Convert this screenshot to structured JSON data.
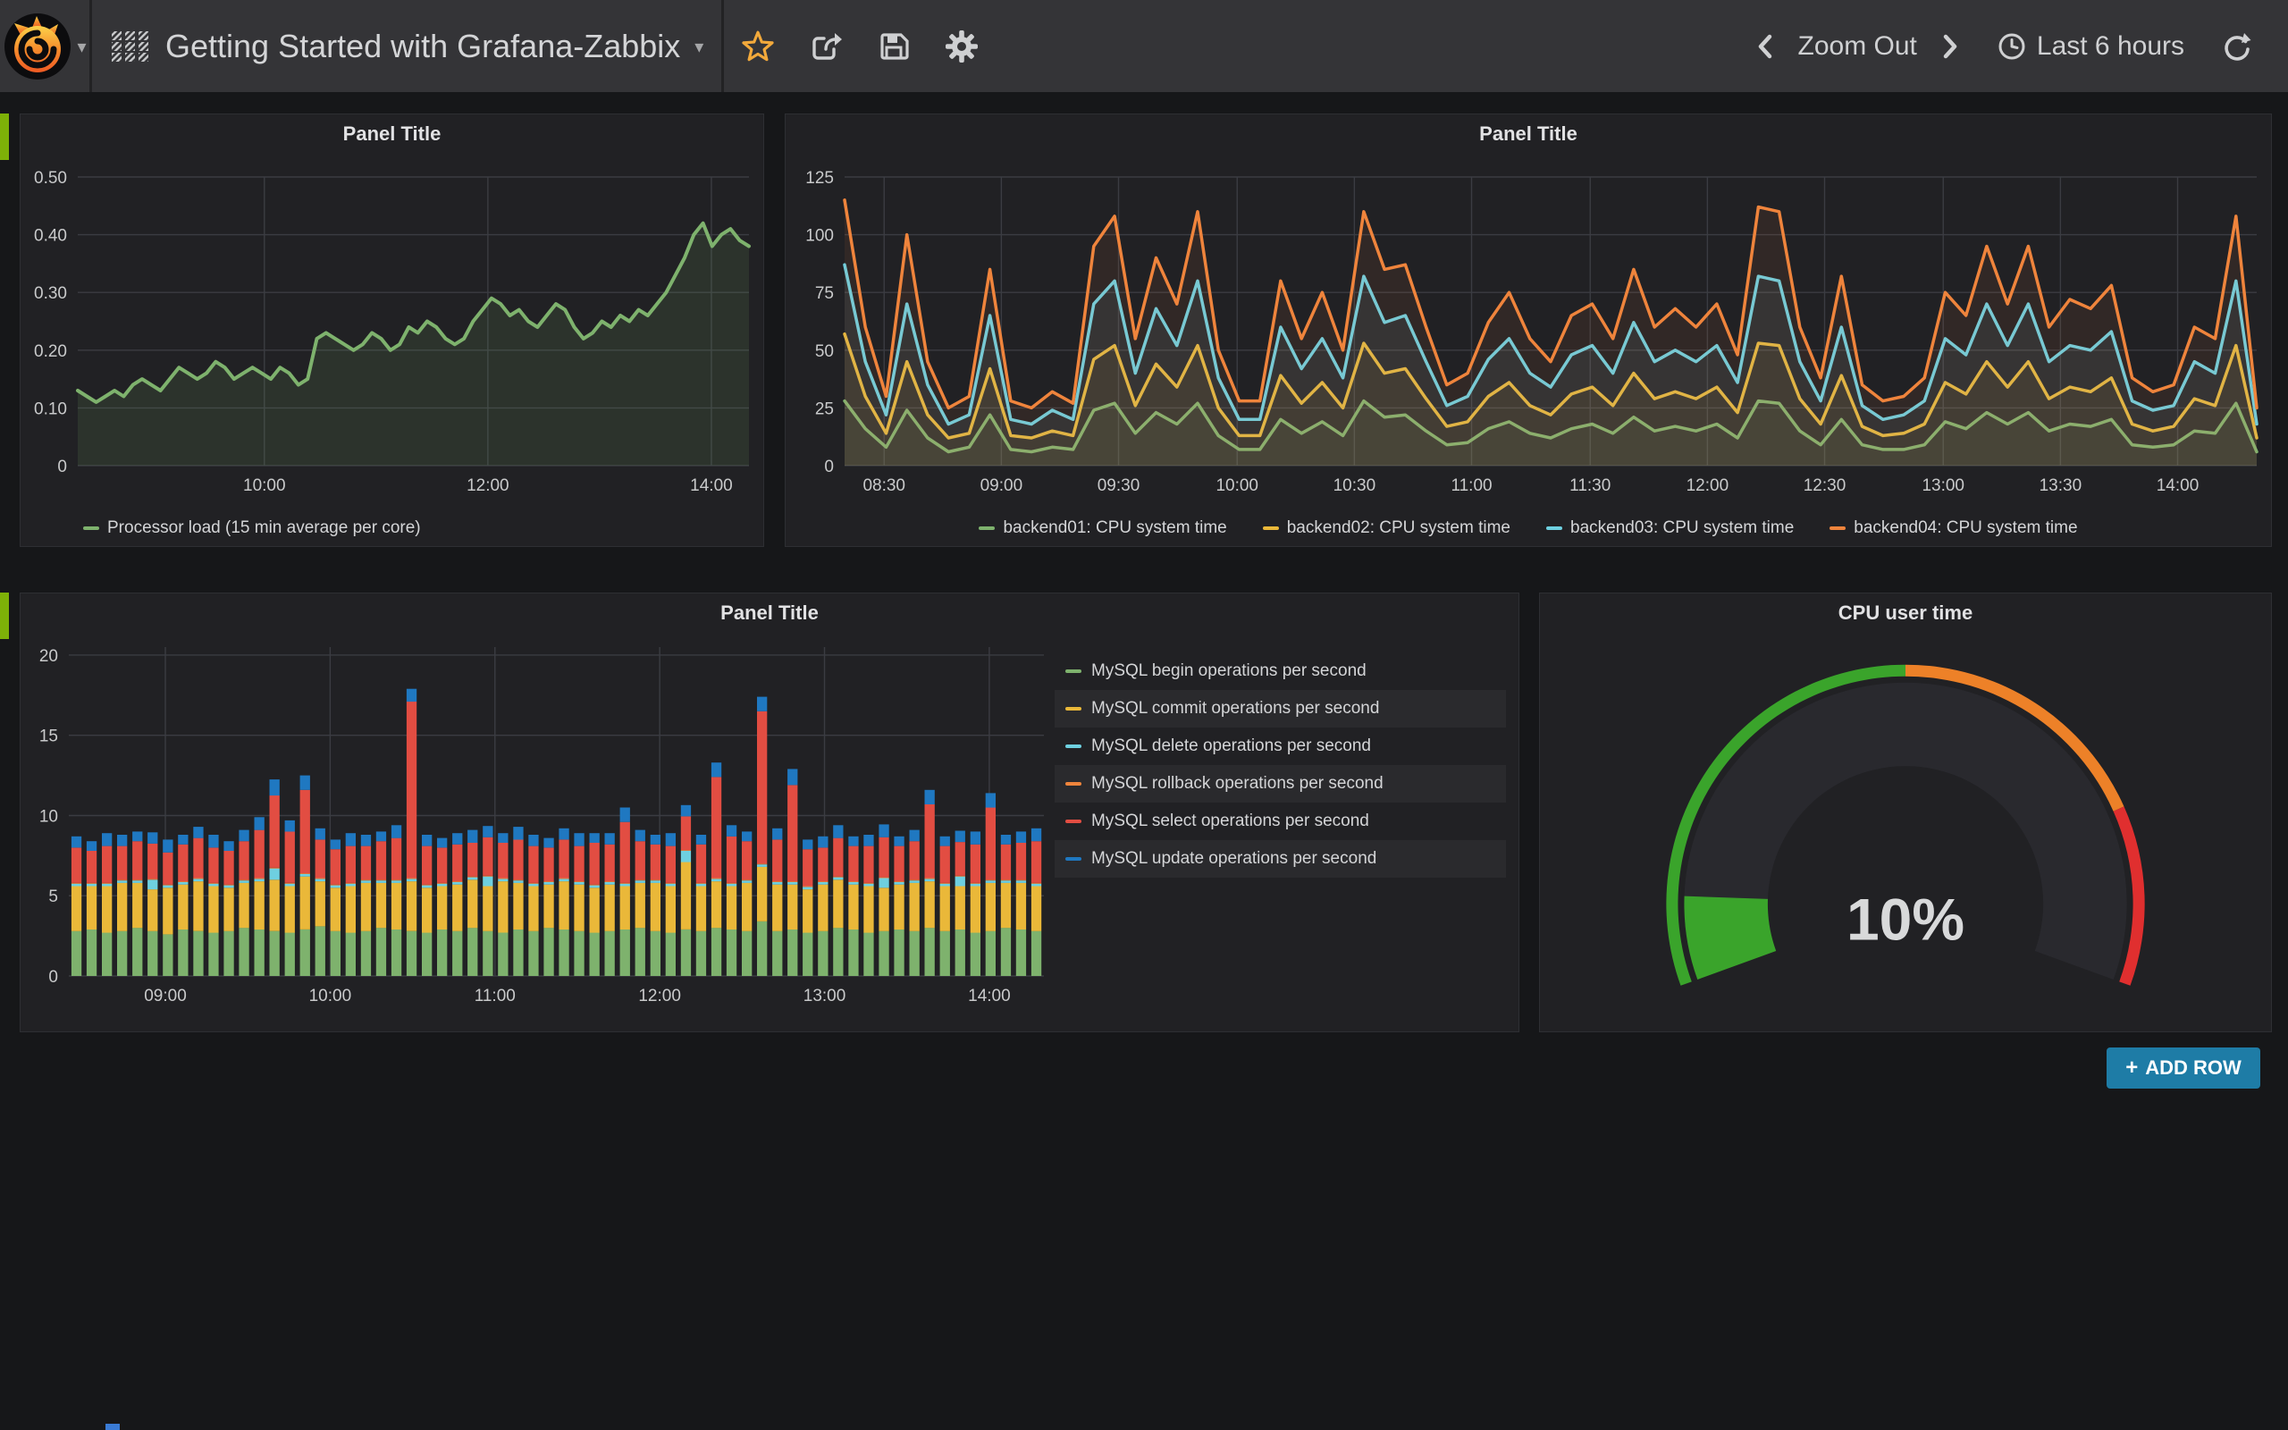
{
  "navbar": {
    "title": "Getting Started with Grafana-Zabbix",
    "title_caret": "▾",
    "logo_caret": "▾",
    "zoom_out_label": "Zoom Out",
    "time_range_label": "Last 6 hours",
    "icons": [
      "grafana-logo",
      "dashboard-grid",
      "star",
      "share",
      "save",
      "gear",
      "chevron-left",
      "chevron-right",
      "clock",
      "refresh"
    ]
  },
  "panels": [
    {
      "title": "Panel Title",
      "legend": [
        {
          "label": "Processor load (15 min average per core)",
          "color": "#7EB26D"
        }
      ]
    },
    {
      "title": "Panel Title",
      "legend": [
        {
          "label": "backend01: CPU system time",
          "color": "#7EB26D"
        },
        {
          "label": "backend02: CPU system time",
          "color": "#EAB839"
        },
        {
          "label": "backend03: CPU system time",
          "color": "#6ED0E0"
        },
        {
          "label": "backend04: CPU system time",
          "color": "#EF843C"
        }
      ]
    },
    {
      "title": "Panel Title",
      "legend": [
        {
          "label": "MySQL begin operations per second",
          "color": "#7EB26D"
        },
        {
          "label": "MySQL commit operations per second",
          "color": "#EAB839"
        },
        {
          "label": "MySQL delete operations per second",
          "color": "#6ED0E0"
        },
        {
          "label": "MySQL rollback operations per second",
          "color": "#EF843C"
        },
        {
          "label": "MySQL select operations per second",
          "color": "#E24D42"
        },
        {
          "label": "MySQL update operations per second",
          "color": "#1F78C1"
        }
      ]
    },
    {
      "title": "CPU user time",
      "value_display": "10%"
    }
  ],
  "add_row": {
    "plus": "+",
    "label": "ADD ROW"
  },
  "colors": {
    "page_bg": "#161719",
    "panel_bg": "#212124",
    "navbar_bg": "#343437",
    "grid": "#3b3c42",
    "tick_text": "#c9cacb",
    "row_handle": "#7EB108",
    "add_row_bg": "#1E7CA6",
    "star": "#F2A93B",
    "gauge_green": "#3AA42B",
    "gauge_orange": "#ED8128",
    "gauge_red": "#E02F2F"
  },
  "chart_data": [
    {
      "type": "line",
      "title": "Panel Title",
      "x_range": [
        "08:20",
        "14:20"
      ],
      "xticks": [
        [
          "10:00",
          0.278
        ],
        [
          "12:00",
          0.611
        ],
        [
          "14:00",
          0.944
        ]
      ],
      "ylim": [
        0,
        0.5
      ],
      "yticks": [
        0,
        0.1,
        0.2,
        0.3,
        0.4,
        0.5
      ],
      "ytick_labels": [
        "0",
        "0.10",
        "0.20",
        "0.30",
        "0.40",
        "0.50"
      ],
      "fill_opacity": 0.12,
      "line_width": 4,
      "series": [
        {
          "name": "Processor load (15 min average per core)",
          "color": "#7EB26D",
          "values": [
            0.13,
            0.12,
            0.11,
            0.12,
            0.13,
            0.12,
            0.14,
            0.15,
            0.14,
            0.13,
            0.15,
            0.17,
            0.16,
            0.15,
            0.16,
            0.18,
            0.17,
            0.15,
            0.16,
            0.17,
            0.16,
            0.15,
            0.17,
            0.16,
            0.14,
            0.15,
            0.22,
            0.23,
            0.22,
            0.21,
            0.2,
            0.21,
            0.23,
            0.22,
            0.2,
            0.21,
            0.24,
            0.23,
            0.25,
            0.24,
            0.22,
            0.21,
            0.22,
            0.25,
            0.27,
            0.29,
            0.28,
            0.26,
            0.27,
            0.25,
            0.24,
            0.26,
            0.28,
            0.27,
            0.24,
            0.22,
            0.23,
            0.25,
            0.24,
            0.26,
            0.25,
            0.27,
            0.26,
            0.28,
            0.3,
            0.33,
            0.36,
            0.4,
            0.42,
            0.38,
            0.4,
            0.41,
            0.39,
            0.38
          ]
        }
      ]
    },
    {
      "type": "line",
      "title": "Panel Title",
      "x_range": [
        "08:20",
        "14:20"
      ],
      "xticks": [
        [
          "08:30",
          0.028
        ],
        [
          "09:00",
          0.111
        ],
        [
          "09:30",
          0.194
        ],
        [
          "10:00",
          0.278
        ],
        [
          "10:30",
          0.361
        ],
        [
          "11:00",
          0.444
        ],
        [
          "11:30",
          0.528
        ],
        [
          "12:00",
          0.611
        ],
        [
          "12:30",
          0.694
        ],
        [
          "13:00",
          0.778
        ],
        [
          "13:30",
          0.861
        ],
        [
          "14:00",
          0.944
        ]
      ],
      "ylim": [
        0,
        125
      ],
      "yticks": [
        0,
        25,
        50,
        75,
        100,
        125
      ],
      "ytick_labels": [
        "0",
        "25",
        "50",
        "75",
        "100",
        "125"
      ],
      "fill_opacity": 0.08,
      "line_width": 3.5,
      "series": [
        {
          "name": "backend01: CPU system time",
          "color": "#7EB26D",
          "values": [
            28,
            16,
            8,
            24,
            12,
            6,
            8,
            22,
            7,
            6,
            8,
            7,
            24,
            27,
            14,
            23,
            18,
            27,
            13,
            7,
            7,
            20,
            14,
            19,
            13,
            28,
            21,
            22,
            15,
            9,
            10,
            16,
            19,
            14,
            12,
            16,
            18,
            14,
            21,
            15,
            17,
            15,
            18,
            12,
            28,
            27,
            15,
            9,
            20,
            9,
            7,
            7,
            9,
            19,
            16,
            23,
            18,
            23,
            15,
            18,
            17,
            20,
            9,
            8,
            9,
            15,
            14,
            27,
            6
          ]
        },
        {
          "name": "backend02: CPU system time",
          "color": "#EAB839",
          "values": [
            57,
            30,
            14,
            45,
            22,
            12,
            14,
            42,
            13,
            12,
            15,
            13,
            46,
            52,
            26,
            44,
            34,
            52,
            25,
            13,
            13,
            39,
            27,
            36,
            25,
            53,
            40,
            42,
            29,
            17,
            19,
            30,
            36,
            26,
            22,
            31,
            34,
            26,
            40,
            29,
            32,
            29,
            34,
            23,
            53,
            52,
            29,
            18,
            39,
            17,
            13,
            14,
            18,
            36,
            31,
            45,
            34,
            45,
            29,
            34,
            32,
            38,
            18,
            15,
            17,
            29,
            26,
            52,
            12
          ]
        },
        {
          "name": "backend03: CPU system time",
          "color": "#6ED0E0",
          "values": [
            87,
            45,
            22,
            70,
            35,
            18,
            22,
            65,
            20,
            18,
            24,
            20,
            70,
            80,
            40,
            68,
            52,
            80,
            38,
            20,
            20,
            60,
            42,
            55,
            38,
            82,
            62,
            65,
            45,
            26,
            30,
            46,
            55,
            40,
            34,
            48,
            52,
            40,
            62,
            45,
            50,
            45,
            52,
            36,
            82,
            80,
            45,
            28,
            60,
            26,
            20,
            22,
            28,
            55,
            48,
            70,
            52,
            70,
            45,
            52,
            50,
            58,
            28,
            24,
            26,
            45,
            40,
            80,
            18
          ]
        },
        {
          "name": "backend04: CPU system time",
          "color": "#EF843C",
          "values": [
            115,
            60,
            30,
            100,
            45,
            25,
            30,
            85,
            28,
            25,
            32,
            27,
            95,
            108,
            55,
            90,
            70,
            110,
            50,
            28,
            28,
            80,
            55,
            75,
            50,
            110,
            85,
            87,
            60,
            35,
            40,
            62,
            75,
            55,
            45,
            65,
            70,
            55,
            85,
            60,
            68,
            60,
            70,
            48,
            112,
            110,
            60,
            38,
            82,
            35,
            28,
            30,
            38,
            75,
            65,
            95,
            70,
            95,
            60,
            72,
            68,
            78,
            38,
            32,
            35,
            60,
            55,
            108,
            25
          ]
        }
      ]
    },
    {
      "type": "bar",
      "stacked": true,
      "title": "Panel Title",
      "x_range": [
        "08:25",
        "14:20"
      ],
      "xticks": [
        [
          "09:00",
          0.099
        ],
        [
          "10:00",
          0.268
        ],
        [
          "11:00",
          0.437
        ],
        [
          "12:00",
          0.606
        ],
        [
          "13:00",
          0.775
        ],
        [
          "14:00",
          0.944
        ]
      ],
      "ylim": [
        0,
        20.5
      ],
      "yticks": [
        0,
        5,
        10,
        15,
        20
      ],
      "ytick_labels": [
        "0",
        "5",
        "10",
        "15",
        "20"
      ],
      "series": [
        {
          "name": "MySQL begin operations per second",
          "color": "#7EB26D",
          "values": [
            2.8,
            2.9,
            2.7,
            2.8,
            3.0,
            2.8,
            2.6,
            2.9,
            2.8,
            2.7,
            2.8,
            3.0,
            2.9,
            2.8,
            2.7,
            2.9,
            3.1,
            2.8,
            2.7,
            2.8,
            3.0,
            2.9,
            2.8,
            2.7,
            2.9,
            2.8,
            3.0,
            2.8,
            2.7,
            2.9,
            2.8,
            3.0,
            2.9,
            2.8,
            2.7,
            2.8,
            2.9,
            3.0,
            2.8,
            2.7,
            2.9,
            2.8,
            3.0,
            2.9,
            2.8,
            3.4,
            2.8,
            2.9,
            2.7,
            2.8,
            3.0,
            2.9,
            2.7,
            2.8,
            2.9,
            2.8,
            3.0,
            2.8,
            2.9,
            2.7,
            2.8,
            3.0,
            2.9,
            2.8
          ]
        },
        {
          "name": "MySQL commit operations per second",
          "color": "#EAB839",
          "values": [
            2.8,
            2.7,
            2.9,
            3.0,
            2.8,
            2.6,
            2.9,
            2.8,
            3.1,
            2.9,
            2.7,
            2.8,
            3.0,
            3.2,
            2.9,
            3.3,
            2.8,
            2.7,
            2.9,
            3.0,
            2.8,
            2.9,
            3.1,
            2.8,
            2.7,
            2.9,
            3.0,
            2.8,
            3.2,
            2.9,
            2.8,
            2.7,
            3.0,
            2.9,
            2.8,
            2.9,
            2.7,
            2.8,
            3.0,
            2.9,
            4.2,
            2.8,
            2.9,
            2.7,
            3.0,
            3.4,
            2.9,
            2.8,
            2.7,
            2.9,
            3.0,
            2.8,
            2.9,
            2.7,
            2.8,
            3.0,
            2.9,
            2.8,
            2.7,
            2.9,
            3.0,
            2.8,
            2.9,
            2.8
          ]
        },
        {
          "name": "MySQL delete operations per second",
          "color": "#6ED0E0",
          "values": [
            0.15,
            0.15,
            0.15,
            0.15,
            0.15,
            0.6,
            0.15,
            0.15,
            0.15,
            0.15,
            0.15,
            0.15,
            0.15,
            0.7,
            0.15,
            0.15,
            0.15,
            0.15,
            0.15,
            0.15,
            0.15,
            0.15,
            0.15,
            0.15,
            0.15,
            0.15,
            0.15,
            0.6,
            0.15,
            0.15,
            0.15,
            0.15,
            0.15,
            0.15,
            0.15,
            0.15,
            0.15,
            0.15,
            0.15,
            0.15,
            0.7,
            0.15,
            0.15,
            0.15,
            0.15,
            0.15,
            0.15,
            0.15,
            0.15,
            0.15,
            0.15,
            0.15,
            0.15,
            0.6,
            0.15,
            0.15,
            0.15,
            0.15,
            0.6,
            0.15,
            0.15,
            0.15,
            0.15,
            0.15
          ]
        },
        {
          "name": "MySQL rollback operations per second",
          "color": "#EF843C",
          "values": [
            0.05,
            0.05,
            0.05,
            0.05,
            0.05,
            0.05,
            0.05,
            0.05,
            0.05,
            0.05,
            0.05,
            0.05,
            0.05,
            0.05,
            0.05,
            0.05,
            0.05,
            0.05,
            0.05,
            0.05,
            0.05,
            0.05,
            0.05,
            0.05,
            0.05,
            0.05,
            0.05,
            0.05,
            0.05,
            0.05,
            0.05,
            0.05,
            0.05,
            0.05,
            0.05,
            0.05,
            0.05,
            0.05,
            0.05,
            0.05,
            0.05,
            0.05,
            0.05,
            0.05,
            0.05,
            0.05,
            0.05,
            0.05,
            0.05,
            0.05,
            0.05,
            0.05,
            0.05,
            0.05,
            0.05,
            0.05,
            0.05,
            0.05,
            0.05,
            0.05,
            0.05,
            0.05,
            0.05,
            0.05
          ]
        },
        {
          "name": "MySQL select operations per second",
          "color": "#E24D42",
          "values": [
            2.2,
            2.0,
            2.3,
            2.1,
            2.4,
            2.2,
            2.0,
            2.3,
            2.5,
            2.2,
            2.1,
            2.4,
            3.0,
            4.5,
            3.2,
            5.2,
            2.4,
            2.2,
            2.3,
            2.1,
            2.4,
            2.6,
            11.0,
            2.4,
            2.2,
            2.3,
            2.1,
            2.4,
            2.2,
            2.5,
            2.3,
            2.1,
            2.4,
            2.2,
            2.6,
            2.3,
            3.8,
            2.4,
            2.2,
            2.3,
            2.1,
            2.4,
            6.3,
            2.9,
            2.4,
            9.5,
            2.6,
            6.0,
            2.3,
            2.1,
            2.4,
            2.2,
            2.3,
            2.5,
            2.2,
            2.4,
            4.6,
            2.3,
            2.1,
            2.4,
            4.5,
            2.2,
            2.3,
            2.6
          ]
        },
        {
          "name": "MySQL update operations per second",
          "color": "#1F78C1",
          "values": [
            0.7,
            0.6,
            0.8,
            0.7,
            0.6,
            0.7,
            0.8,
            0.6,
            0.7,
            0.8,
            0.6,
            0.7,
            0.8,
            1.0,
            0.7,
            0.9,
            0.7,
            0.6,
            0.8,
            0.7,
            0.6,
            0.8,
            0.8,
            0.7,
            0.6,
            0.7,
            0.8,
            0.7,
            0.6,
            0.8,
            0.7,
            0.6,
            0.7,
            0.8,
            0.6,
            0.7,
            0.9,
            0.7,
            0.6,
            0.8,
            0.7,
            0.6,
            0.9,
            0.7,
            0.6,
            0.9,
            0.7,
            1.0,
            0.6,
            0.7,
            0.8,
            0.6,
            0.7,
            0.8,
            0.6,
            0.7,
            0.9,
            0.6,
            0.7,
            0.8,
            0.9,
            0.6,
            0.7,
            0.8
          ]
        }
      ]
    },
    {
      "type": "gauge",
      "title": "CPU user time",
      "value": 10,
      "unit": "%",
      "display": "10%",
      "min": 0,
      "max": 100,
      "thresholds": [
        {
          "from": 0,
          "to": 50,
          "color": "#3AA42B"
        },
        {
          "from": 50,
          "to": 80,
          "color": "#ED8128"
        },
        {
          "from": 80,
          "to": 100,
          "color": "#E02F2F"
        }
      ],
      "ring_bg": "#29292E",
      "value_color": "#D8D9DA"
    }
  ]
}
